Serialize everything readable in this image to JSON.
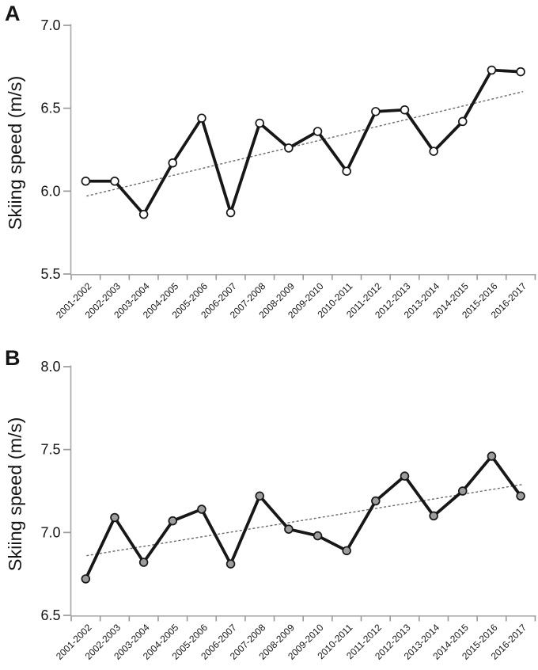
{
  "figure": {
    "background": "#ffffff",
    "text_color": "#151515",
    "axis_color": "#ababab",
    "tick_color": "#9a9a9a",
    "series_color": "#171717",
    "trend_color": "#6a6a6a"
  },
  "chart_data": [
    {
      "id": "a",
      "type": "line",
      "panel_label": "A",
      "ylabel": "Skiing speed (m/s)",
      "categories": [
        "2001-2002",
        "2002-2003",
        "2003-2004",
        "2004-2005",
        "2005-2006",
        "2006-2007",
        "2007-2008",
        "2008-2009",
        "2009-2010",
        "2010-2011",
        "2011-2012",
        "2012-2013",
        "2013-2014",
        "2014-2015",
        "2015-2016",
        "2016-2017"
      ],
      "values": [
        6.06,
        6.06,
        5.86,
        6.17,
        6.44,
        5.87,
        6.41,
        6.26,
        6.36,
        6.12,
        6.48,
        6.49,
        6.24,
        6.42,
        6.73,
        6.72
      ],
      "ylim": [
        5.5,
        7.0
      ],
      "yticks": [
        5.5,
        6.0,
        6.5,
        7.0
      ],
      "trend": {
        "type": "linear-dashed",
        "start": 5.97,
        "end": 6.6
      },
      "marker_fill": "#ffffff",
      "legend": "none",
      "grid": "off"
    },
    {
      "id": "b",
      "type": "line",
      "panel_label": "B",
      "ylabel": "Skiing speed (m/s)",
      "categories": [
        "2001-2002",
        "2002-2003",
        "2003-2004",
        "2004-2005",
        "2005-2006",
        "2006-2007",
        "2007-2008",
        "2008-2009",
        "2009-2010",
        "2010-2011",
        "2011-2012",
        "2012-2013",
        "2013-2014",
        "2014-2015",
        "2015-2016",
        "2016-2017"
      ],
      "values": [
        6.72,
        7.09,
        6.82,
        7.07,
        7.14,
        6.81,
        7.22,
        7.02,
        6.98,
        6.89,
        7.19,
        7.34,
        7.1,
        7.25,
        7.46,
        7.22
      ],
      "ylim": [
        6.5,
        8.0
      ],
      "yticks": [
        6.5,
        7.0,
        7.5,
        8.0
      ],
      "trend": {
        "type": "linear-dashed",
        "start": 6.86,
        "end": 7.29
      },
      "marker_fill": "#9c9c9c",
      "legend": "none",
      "grid": "off"
    }
  ]
}
